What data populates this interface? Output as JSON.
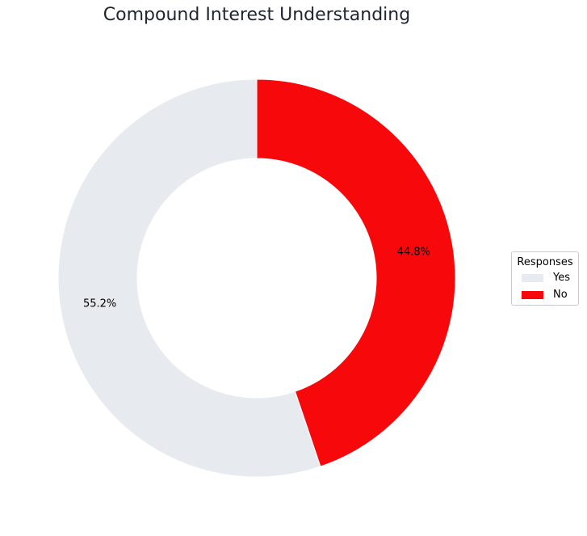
{
  "chart_data": {
    "type": "pie",
    "donut": true,
    "title": "Compound Interest Understanding",
    "categories": [
      "Yes",
      "No"
    ],
    "values": [
      55.2,
      44.8
    ],
    "labels": [
      "55.2%",
      "44.8%"
    ],
    "colors": [
      "#e7eaef",
      "#f7080a"
    ],
    "start_angle_deg": 90,
    "direction": "counterclockwise",
    "legend": {
      "title": "Responses",
      "placement": "right",
      "entries": [
        "Yes",
        "No"
      ]
    }
  }
}
